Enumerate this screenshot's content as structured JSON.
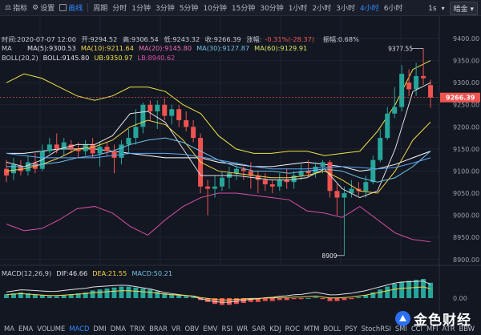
{
  "toolbar": {
    "indicator_label": "指标",
    "settings_label": "设置",
    "drawing_label": "画线",
    "period_label": "周期",
    "periods": [
      "分时",
      "1分钟",
      "3分钟",
      "5分钟",
      "10分钟",
      "15分钟",
      "30分钟",
      "1小时",
      "2小时",
      "3小时",
      "4小时",
      "6小时"
    ],
    "active_period": "4小时",
    "sec_label": "1s",
    "theme_label": "暗金"
  },
  "ohlc": {
    "time_label": "时间:2020-07-07 12:00",
    "open": "开:9294.52",
    "high": "高:9306.54",
    "low": "低:9243.32",
    "close": "收:9266.39",
    "change_label": "涨幅:",
    "change": "-0.31%(-28.37)",
    "amplitude": "振幅:0.68%"
  },
  "ma": {
    "label": "MA",
    "ma5": "MA(5):9300.53",
    "ma10": "MA(10):9211.64",
    "ma20": "MA(20):9145.80",
    "ma30": "MA(30):9127.87",
    "ma60": "MA(60):9129.91"
  },
  "boll": {
    "label": "BOLL(20,2)",
    "mid": "BOLL:9145.80",
    "ub": "UB:9350.97",
    "lb": "LB:8940.62"
  },
  "price_axis": {
    "ticks": [
      9400,
      9350,
      9300,
      9250,
      9200,
      9150,
      9100,
      9050,
      9000,
      8950,
      8900
    ],
    "current": "9266.39",
    "high_marker": "9377.55",
    "low_marker": "8909"
  },
  "macd": {
    "label": "MACD(12,26,9)",
    "dif": "DIF:46.66",
    "dea": "DEA:21.55",
    "macd": "MACD:50.21",
    "axis_zero": "0.00"
  },
  "indicators": [
    "MA",
    "EMA",
    "VOLUME",
    "MACD",
    "DMI",
    "DMA",
    "TRIX",
    "BRAR",
    "VR",
    "OBV",
    "EMV",
    "RSI",
    "WR",
    "SAR",
    "KDJ",
    "ROC",
    "MTM",
    "BOLL",
    "PSY",
    "StochRSI",
    "SMI",
    "CCI",
    "MFI",
    "ATR",
    "BBW"
  ],
  "active_indicator": "MACD",
  "watermark": "金色财经",
  "colors": {
    "up": "#26a69a",
    "down": "#ef5350",
    "ma5": "#e0e0e0",
    "ma10": "#f5d547",
    "ma20": "#d9e65c",
    "ma30": "#6ec1e4",
    "ma60": "#5ba7f7",
    "boll_mid": "#ffffff",
    "boll_ub": "#f0e442",
    "boll_lb": "#d94fa6"
  }
}
